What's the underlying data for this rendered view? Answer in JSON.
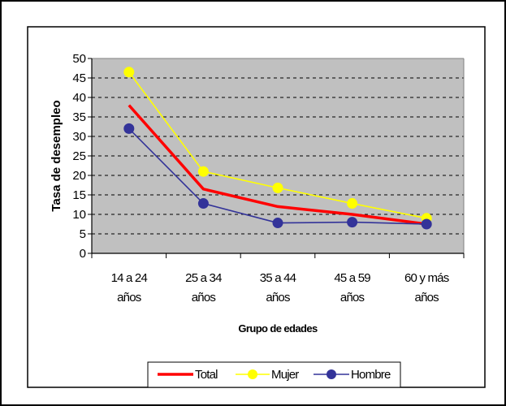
{
  "chart_data": {
    "type": "line",
    "categories": [
      [
        "14 a 24",
        "años"
      ],
      [
        "25 a 34",
        "años"
      ],
      [
        "35 a 44",
        "años"
      ],
      [
        "45 a 59",
        "años"
      ],
      [
        "60 y más",
        "años"
      ]
    ],
    "series": [
      {
        "name": "Total",
        "values": [
          38,
          16.5,
          12,
          10,
          7.5
        ],
        "color": "#ff0000",
        "marker": "none"
      },
      {
        "name": "Mujer",
        "values": [
          46.5,
          21,
          16.8,
          12.8,
          9
        ],
        "color": "#ffff00",
        "marker": "circle"
      },
      {
        "name": "Hombre",
        "values": [
          32,
          12.8,
          7.8,
          8,
          7.5
        ],
        "color": "#333399",
        "marker": "circle"
      }
    ],
    "xlabel": "Grupo de edades",
    "ylabel": "Tasa de desempleo",
    "ylim": [
      0,
      50
    ],
    "yticks": [
      0,
      5,
      10,
      15,
      20,
      25,
      30,
      35,
      40,
      45,
      50
    ],
    "grid": true,
    "plot_background": "#c0c0c0",
    "legend_position": "bottom"
  }
}
